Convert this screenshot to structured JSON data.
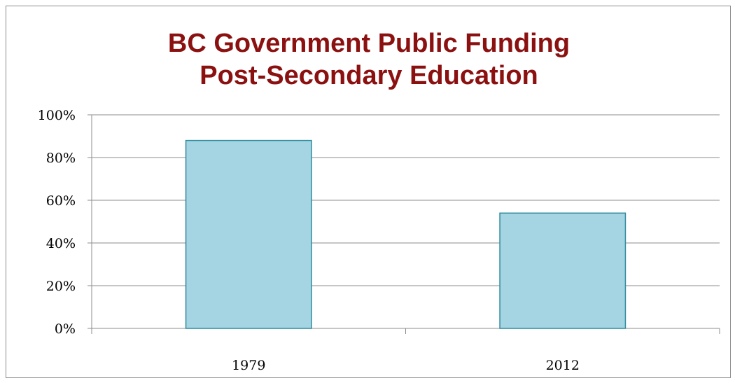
{
  "chart_data": {
    "type": "bar",
    "title_lines": [
      "BC Government Public Funding",
      "Post-Secondary Education"
    ],
    "categories": [
      "1979",
      "2012"
    ],
    "values": [
      88,
      54
    ],
    "ylim": [
      0,
      100
    ],
    "yticks": [
      0,
      20,
      40,
      60,
      80,
      100
    ],
    "ytick_labels": [
      "0%",
      "20%",
      "40%",
      "60%",
      "80%",
      "100%"
    ],
    "xlabel": "",
    "ylabel": "",
    "grid": true,
    "legend": "none",
    "colors": {
      "bar_fill": "#a5d5e2",
      "bar_stroke": "#2e8a9e",
      "title": "#8b1111",
      "grid": "#8c8c8c"
    }
  }
}
